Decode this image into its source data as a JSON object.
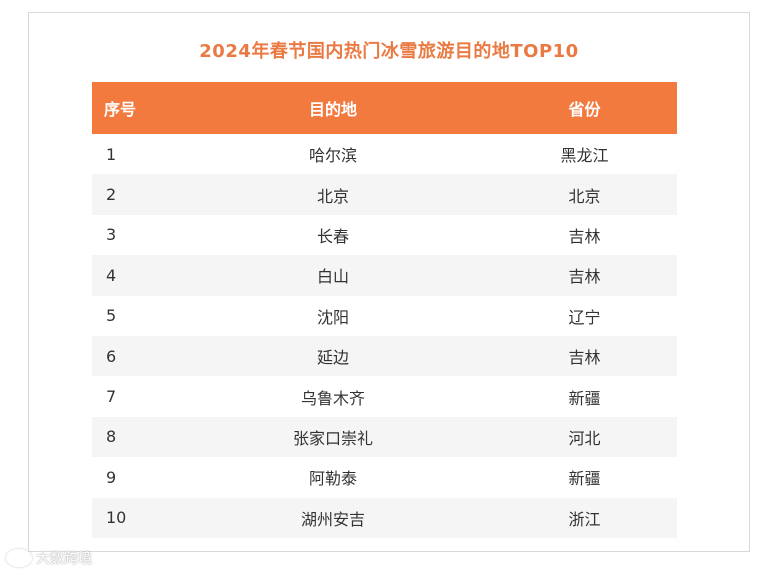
{
  "title": "2024年春节国内热门冰雪旅游目的地TOP10",
  "table": {
    "headers": [
      "序号",
      "目的地",
      "省份"
    ],
    "rows": [
      {
        "rank": "1",
        "destination": "哈尔滨",
        "province": "黑龙江"
      },
      {
        "rank": "2",
        "destination": "北京",
        "province": "北京"
      },
      {
        "rank": "3",
        "destination": "长春",
        "province": "吉林"
      },
      {
        "rank": "4",
        "destination": "白山",
        "province": "吉林"
      },
      {
        "rank": "5",
        "destination": "沈阳",
        "province": "辽宁"
      },
      {
        "rank": "6",
        "destination": "延边",
        "province": "吉林"
      },
      {
        "rank": "7",
        "destination": "乌鲁木齐",
        "province": "新疆"
      },
      {
        "rank": "8",
        "destination": "张家口崇礼",
        "province": "河北"
      },
      {
        "rank": "9",
        "destination": "阿勒泰",
        "province": "新疆"
      },
      {
        "rank": "10",
        "destination": "湖州安吉",
        "province": "浙江"
      }
    ]
  },
  "watermark": "大数跨境",
  "colors": {
    "header_bg": "#f37a3f",
    "title": "#ea7a43",
    "stripe": "#f5f5f5"
  }
}
